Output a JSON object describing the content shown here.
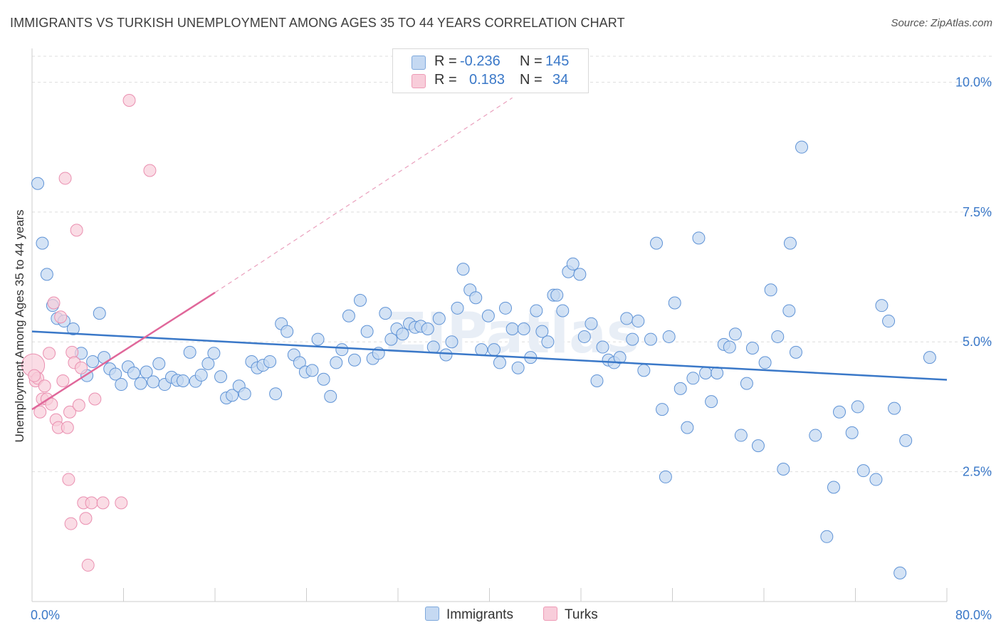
{
  "title": "IMMIGRANTS VS TURKISH UNEMPLOYMENT AMONG AGES 35 TO 44 YEARS CORRELATION CHART",
  "source": "Source: ZipAtlas.com",
  "watermark": "ZIPatlas",
  "legend_top": {
    "rows": [
      {
        "r_label": "R =",
        "r_value": "-0.236",
        "n_label": "N =",
        "n_value": "145",
        "color": "#9ec0ea"
      },
      {
        "r_label": "R =",
        "r_value": "0.183",
        "n_label": "N =",
        "n_value": "34",
        "color": "#f5b5c9"
      }
    ]
  },
  "legend_bottom": [
    {
      "label": "Immigrants",
      "color": "#9ec0ea"
    },
    {
      "label": "Turks",
      "color": "#f5b5c9"
    }
  ],
  "chart_data": {
    "type": "scatter",
    "title": "IMMIGRANTS VS TURKISH UNEMPLOYMENT AMONG AGES 35 TO 44 YEARS CORRELATION CHART",
    "xlabel": "",
    "ylabel": "Unemployment Among Ages 35 to 44 years",
    "xlim": [
      0,
      80
    ],
    "ylim": [
      0,
      10.5
    ],
    "x_tick_labels": [
      "0.0%",
      "80.0%"
    ],
    "y_ticks": [
      2.5,
      5.0,
      7.5,
      10.0
    ],
    "y_tick_labels": [
      "2.5%",
      "5.0%",
      "7.5%",
      "10.0%"
    ],
    "grid": true,
    "legend_position": "bottom",
    "colors": {
      "Immigrants": "#3a78c8",
      "Turks": "#e0679a",
      "Immigrants_fill": "#c5d9f2",
      "Turks_fill": "#f8cdda"
    },
    "series": [
      {
        "name": "Immigrants",
        "trend": {
          "x": [
            0,
            80
          ],
          "y": [
            5.2,
            4.27
          ]
        },
        "points": [
          [
            0.5,
            8.05
          ],
          [
            0.9,
            6.9
          ],
          [
            1.3,
            6.3
          ],
          [
            1.8,
            5.7
          ],
          [
            2.2,
            5.45
          ],
          [
            2.8,
            5.4
          ],
          [
            3.6,
            5.25
          ],
          [
            4.3,
            4.78
          ],
          [
            4.8,
            4.35
          ],
          [
            5.3,
            4.62
          ],
          [
            5.9,
            5.55
          ],
          [
            6.3,
            4.7
          ],
          [
            6.8,
            4.48
          ],
          [
            7.3,
            4.38
          ],
          [
            7.8,
            4.18
          ],
          [
            8.4,
            4.52
          ],
          [
            8.9,
            4.4
          ],
          [
            9.5,
            4.2
          ],
          [
            10.0,
            4.42
          ],
          [
            10.6,
            4.23
          ],
          [
            11.1,
            4.58
          ],
          [
            11.6,
            4.18
          ],
          [
            12.2,
            4.32
          ],
          [
            12.7,
            4.26
          ],
          [
            13.2,
            4.25
          ],
          [
            13.8,
            4.8
          ],
          [
            14.3,
            4.24
          ],
          [
            14.8,
            4.36
          ],
          [
            15.4,
            4.58
          ],
          [
            15.9,
            4.78
          ],
          [
            16.5,
            4.33
          ],
          [
            17.0,
            3.92
          ],
          [
            17.5,
            3.97
          ],
          [
            18.1,
            4.15
          ],
          [
            18.6,
            4.0
          ],
          [
            19.2,
            4.62
          ],
          [
            19.7,
            4.5
          ],
          [
            20.2,
            4.55
          ],
          [
            20.8,
            4.62
          ],
          [
            21.3,
            4.0
          ],
          [
            21.8,
            5.35
          ],
          [
            22.3,
            5.2
          ],
          [
            22.9,
            4.75
          ],
          [
            23.4,
            4.6
          ],
          [
            23.9,
            4.42
          ],
          [
            24.5,
            4.45
          ],
          [
            25.0,
            5.05
          ],
          [
            25.5,
            4.28
          ],
          [
            26.1,
            3.95
          ],
          [
            26.6,
            4.6
          ],
          [
            27.1,
            4.85
          ],
          [
            27.7,
            5.5
          ],
          [
            28.2,
            4.65
          ],
          [
            28.7,
            5.8
          ],
          [
            29.3,
            5.2
          ],
          [
            29.8,
            4.68
          ],
          [
            30.3,
            4.78
          ],
          [
            30.9,
            5.55
          ],
          [
            31.4,
            5.05
          ],
          [
            31.9,
            5.25
          ],
          [
            32.4,
            5.15
          ],
          [
            33.0,
            5.35
          ],
          [
            33.5,
            5.28
          ],
          [
            34.0,
            5.3
          ],
          [
            34.6,
            5.25
          ],
          [
            35.1,
            4.9
          ],
          [
            35.6,
            5.45
          ],
          [
            36.2,
            4.75
          ],
          [
            36.7,
            5.0
          ],
          [
            37.2,
            5.65
          ],
          [
            37.7,
            6.4
          ],
          [
            38.3,
            6.0
          ],
          [
            38.8,
            5.85
          ],
          [
            39.3,
            4.85
          ],
          [
            39.9,
            5.5
          ],
          [
            40.4,
            4.85
          ],
          [
            40.9,
            4.6
          ],
          [
            41.4,
            5.65
          ],
          [
            42.0,
            5.25
          ],
          [
            42.5,
            4.5
          ],
          [
            43.0,
            5.25
          ],
          [
            43.6,
            4.7
          ],
          [
            44.1,
            5.6
          ],
          [
            44.6,
            5.2
          ],
          [
            45.1,
            5.0
          ],
          [
            45.6,
            5.9
          ],
          [
            45.9,
            5.9
          ],
          [
            46.4,
            5.6
          ],
          [
            46.9,
            6.35
          ],
          [
            47.3,
            6.5
          ],
          [
            47.9,
            6.3
          ],
          [
            48.3,
            5.1
          ],
          [
            48.9,
            5.35
          ],
          [
            49.4,
            4.25
          ],
          [
            49.9,
            4.9
          ],
          [
            50.4,
            4.65
          ],
          [
            50.9,
            4.6
          ],
          [
            51.4,
            4.7
          ],
          [
            52.0,
            5.45
          ],
          [
            52.5,
            5.05
          ],
          [
            53.0,
            5.4
          ],
          [
            53.5,
            4.45
          ],
          [
            54.1,
            5.05
          ],
          [
            54.6,
            6.9
          ],
          [
            55.1,
            3.7
          ],
          [
            55.7,
            5.1
          ],
          [
            56.2,
            5.75
          ],
          [
            56.7,
            4.1
          ],
          [
            57.3,
            3.35
          ],
          [
            57.8,
            4.3
          ],
          [
            58.3,
            7.0
          ],
          [
            58.9,
            4.4
          ],
          [
            59.4,
            3.85
          ],
          [
            59.9,
            4.4
          ],
          [
            60.5,
            4.95
          ],
          [
            61.0,
            4.9
          ],
          [
            61.5,
            5.15
          ],
          [
            62.0,
            3.2
          ],
          [
            62.5,
            4.2
          ],
          [
            63.0,
            4.88
          ],
          [
            63.5,
            3.0
          ],
          [
            64.1,
            4.6
          ],
          [
            64.6,
            6.0
          ],
          [
            65.2,
            5.1
          ],
          [
            65.7,
            2.55
          ],
          [
            66.2,
            5.6
          ],
          [
            66.8,
            4.8
          ],
          [
            67.3,
            8.75
          ],
          [
            68.5,
            3.2
          ],
          [
            69.5,
            1.25
          ],
          [
            70.1,
            2.2
          ],
          [
            70.6,
            3.65
          ],
          [
            71.7,
            3.25
          ],
          [
            72.2,
            3.75
          ],
          [
            72.7,
            2.52
          ],
          [
            73.8,
            2.35
          ],
          [
            74.3,
            5.7
          ],
          [
            74.9,
            5.4
          ],
          [
            75.4,
            3.72
          ],
          [
            75.9,
            0.55
          ],
          [
            76.4,
            3.1
          ],
          [
            78.5,
            4.7
          ],
          [
            55.4,
            2.4
          ],
          [
            66.3,
            6.9
          ]
        ]
      },
      {
        "name": "Turks",
        "trend": {
          "x": [
            0,
            16
          ],
          "y": [
            3.7,
            5.95
          ],
          "dashed_to": {
            "x": 42,
            "y": 9.7
          }
        },
        "points": [
          [
            0.1,
            4.55
          ],
          [
            0.3,
            4.25
          ],
          [
            0.5,
            4.3
          ],
          [
            0.7,
            3.65
          ],
          [
            0.9,
            3.9
          ],
          [
            1.1,
            4.15
          ],
          [
            1.3,
            3.9
          ],
          [
            1.5,
            4.78
          ],
          [
            1.7,
            3.8
          ],
          [
            1.9,
            5.75
          ],
          [
            2.1,
            3.5
          ],
          [
            2.3,
            3.35
          ],
          [
            2.5,
            5.48
          ],
          [
            2.7,
            4.25
          ],
          [
            2.9,
            8.15
          ],
          [
            3.1,
            3.35
          ],
          [
            3.3,
            3.65
          ],
          [
            3.5,
            4.8
          ],
          [
            3.7,
            4.6
          ],
          [
            3.9,
            7.15
          ],
          [
            4.1,
            3.78
          ],
          [
            4.3,
            4.5
          ],
          [
            4.5,
            1.9
          ],
          [
            4.7,
            1.6
          ],
          [
            4.9,
            0.7
          ],
          [
            5.2,
            1.9
          ],
          [
            5.5,
            3.9
          ],
          [
            6.2,
            1.9
          ],
          [
            7.8,
            1.9
          ],
          [
            8.5,
            9.65
          ],
          [
            10.3,
            8.3
          ],
          [
            3.2,
            2.35
          ],
          [
            3.4,
            1.5
          ],
          [
            0.2,
            4.35
          ]
        ]
      }
    ]
  }
}
